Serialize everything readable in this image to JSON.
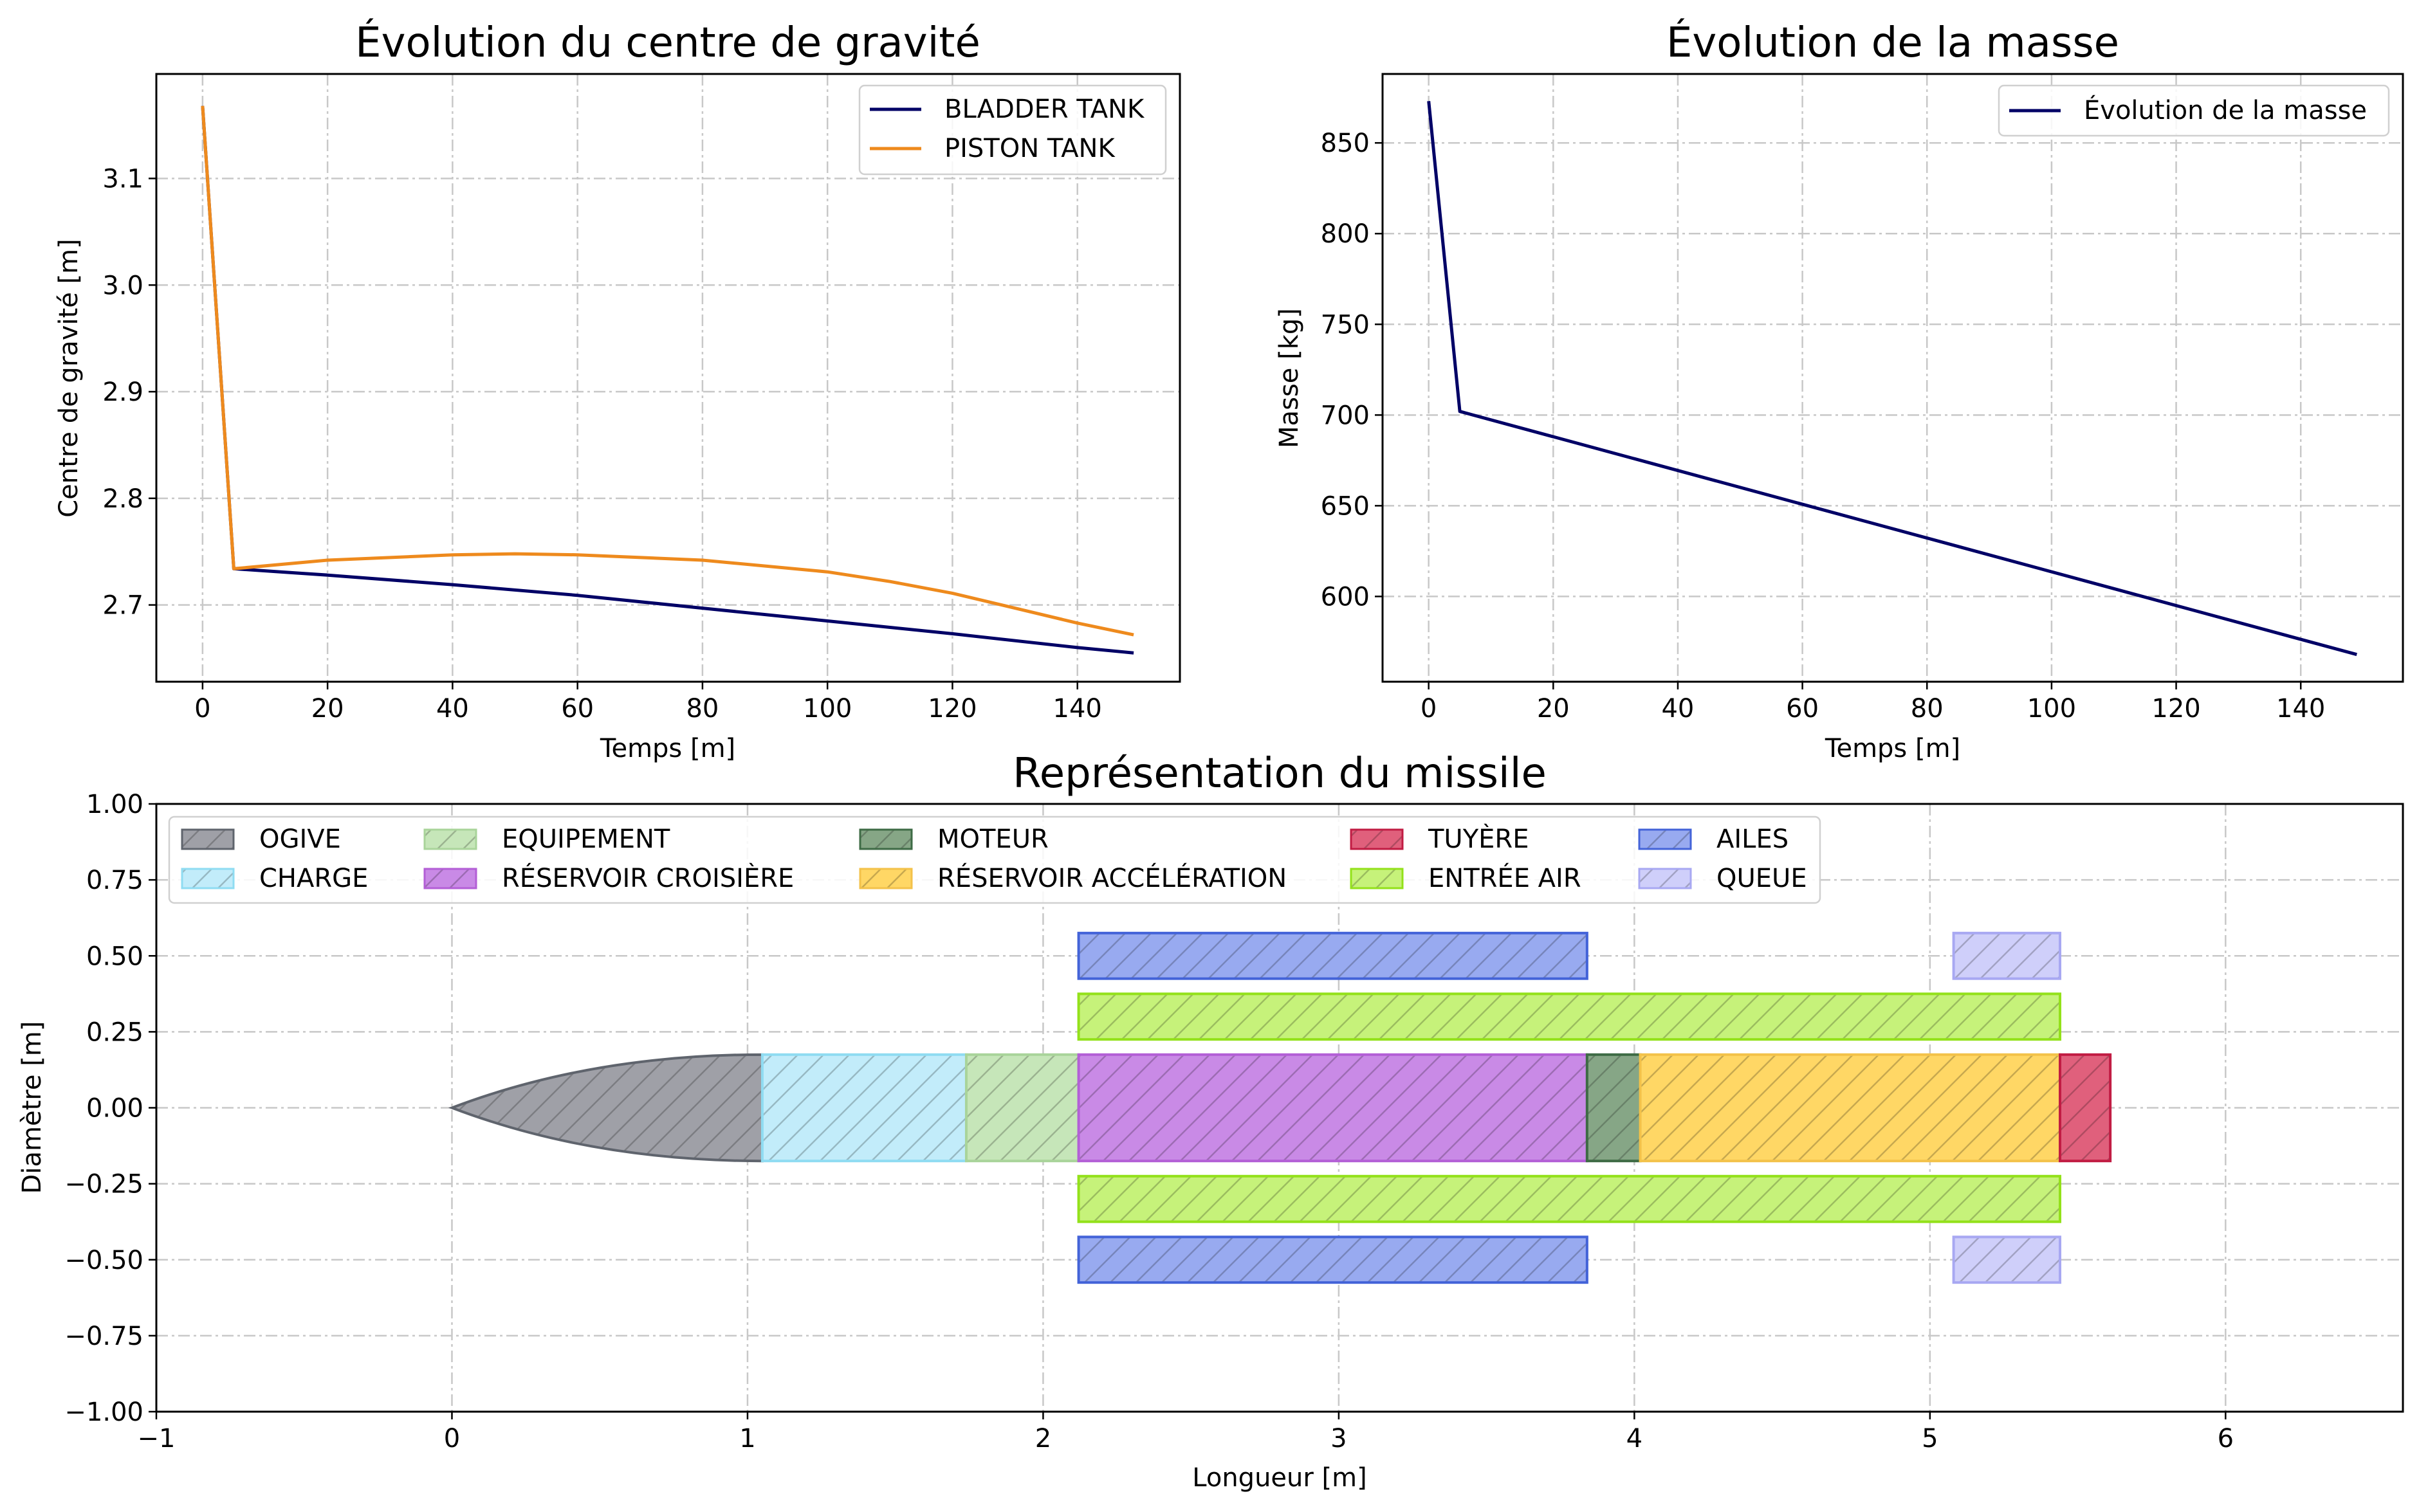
{
  "colors": {
    "navy": "#000066",
    "orange": "#ee8a1d",
    "grid": "#c8c8c8"
  },
  "chart_data": [
    {
      "type": "line",
      "title": "Évolution du centre de gravité",
      "xlabel": "Temps [m]",
      "ylabel": "Centre de gravité [m]",
      "xlim": [
        -7.4,
        156.4
      ],
      "ylim": [
        2.628,
        3.198
      ],
      "xticks": [
        0,
        20,
        40,
        60,
        80,
        100,
        120,
        140
      ],
      "yticks": [
        2.7,
        2.8,
        2.9,
        3.0,
        3.1
      ],
      "grid": true,
      "legend": "top-right",
      "series": [
        {
          "name": "BLADDER TANK",
          "color": "#000066",
          "x": [
            0,
            5,
            20,
            40,
            60,
            80,
            100,
            120,
            140,
            149
          ],
          "y": [
            3.168,
            2.734,
            2.728,
            2.719,
            2.709,
            2.697,
            2.685,
            2.673,
            2.66,
            2.655
          ]
        },
        {
          "name": "PISTON TANK",
          "color": "#ee8a1d",
          "x": [
            0,
            5,
            20,
            40,
            50,
            60,
            80,
            100,
            110,
            120,
            130,
            140,
            149
          ],
          "y": [
            3.168,
            2.734,
            2.742,
            2.747,
            2.748,
            2.747,
            2.742,
            2.731,
            2.722,
            2.711,
            2.697,
            2.683,
            2.672
          ]
        }
      ]
    },
    {
      "type": "line",
      "title": "Évolution de la masse",
      "xlabel": "Temps [m]",
      "ylabel": "Masse [kg]",
      "xlim": [
        -7.4,
        156.4
      ],
      "ylim": [
        553,
        888
      ],
      "xticks": [
        0,
        20,
        40,
        60,
        80,
        100,
        120,
        140
      ],
      "yticks": [
        600,
        650,
        700,
        750,
        800,
        850
      ],
      "grid": true,
      "legend": "top-right",
      "series": [
        {
          "name": "Évolution de la masse",
          "color": "#000066",
          "x": [
            0,
            5,
            149
          ],
          "y": [
            873,
            702,
            568
          ]
        }
      ]
    },
    {
      "type": "diagram",
      "title": "Représentation du missile",
      "xlabel": "Longueur [m]",
      "ylabel": "Diamètre [m]",
      "xlim": [
        -1,
        6.6
      ],
      "ylim": [
        -1,
        1
      ],
      "xticks": [
        -1,
        0,
        1,
        2,
        3,
        4,
        5,
        6
      ],
      "yticks": [
        1.0,
        0.75,
        0.5,
        0.25,
        0.0,
        -0.25,
        -0.5,
        -0.75,
        -1.0
      ],
      "xtick_labels": [
        "−1",
        "0",
        "1",
        "2",
        "3",
        "4",
        "5",
        "6"
      ],
      "ytick_labels": [
        "1.00",
        "0.75",
        "0.50",
        "0.25",
        "0.00",
        "−0.25",
        "−0.50",
        "−0.75",
        "−1.00"
      ],
      "grid": true,
      "legend": "top-left",
      "components": [
        {
          "name": "OGIVE",
          "fill": "#9fa0a7",
          "edge": "#5f646d",
          "shape": "ogive",
          "x0": 0,
          "x1": 1.05,
          "y0": -0.175,
          "y1": 0.175
        },
        {
          "name": "CHARGE",
          "fill": "#c2ecfa",
          "edge": "#8fdcf2",
          "shape": "rect",
          "x0": 1.05,
          "x1": 1.74,
          "y0": -0.175,
          "y1": 0.175
        },
        {
          "name": "EQUIPEMENT",
          "fill": "#c6e6b9",
          "edge": "#a9d49a",
          "shape": "rect",
          "x0": 1.74,
          "x1": 2.12,
          "y0": -0.175,
          "y1": 0.175
        },
        {
          "name": "RÉSERVOIR CROISIÈRE",
          "fill": "#c98ae6",
          "edge": "#b35fd6",
          "shape": "rect",
          "x0": 2.12,
          "x1": 3.84,
          "y0": -0.175,
          "y1": 0.175
        },
        {
          "name": "MOTEUR",
          "fill": "#86a686",
          "edge": "#3e6b45",
          "shape": "rect",
          "x0": 3.84,
          "x1": 4.02,
          "y0": -0.175,
          "y1": 0.175
        },
        {
          "name": "RÉSERVOIR ACCÉLÉRATION",
          "fill": "#ffd765",
          "edge": "#f3c24a",
          "shape": "rect",
          "x0": 4.02,
          "x1": 5.44,
          "y0": -0.175,
          "y1": 0.175
        },
        {
          "name": "TUYÈRE",
          "fill": "#e0607c",
          "edge": "#c11c43",
          "shape": "rect",
          "x0": 5.44,
          "x1": 5.61,
          "y0": -0.175,
          "y1": 0.175
        },
        {
          "name": "ENTRÉE AIR",
          "fill": "#c6f27a",
          "edge": "#93e11a",
          "shape": "rect",
          "x0": 2.12,
          "x1": 5.44,
          "y0": 0.225,
          "y1": 0.375
        },
        {
          "name": "ENTRÉE AIR",
          "fill": "#c6f27a",
          "edge": "#93e11a",
          "shape": "rect",
          "x0": 2.12,
          "x1": 5.44,
          "y0": -0.375,
          "y1": -0.225
        },
        {
          "name": "AILES",
          "fill": "#98aaf0",
          "edge": "#4363d8",
          "shape": "rect",
          "x0": 2.12,
          "x1": 3.84,
          "y0": 0.425,
          "y1": 0.575
        },
        {
          "name": "AILES",
          "fill": "#98aaf0",
          "edge": "#4363d8",
          "shape": "rect",
          "x0": 2.12,
          "x1": 3.84,
          "y0": -0.575,
          "y1": -0.425
        },
        {
          "name": "QUEUE",
          "fill": "#cfcffa",
          "edge": "#a8a8f2",
          "shape": "rect",
          "x0": 5.08,
          "x1": 5.44,
          "y0": 0.425,
          "y1": 0.575
        },
        {
          "name": "QUEUE",
          "fill": "#cfcffa",
          "edge": "#a8a8f2",
          "shape": "rect",
          "x0": 5.08,
          "x1": 5.44,
          "y0": -0.575,
          "y1": -0.425
        }
      ],
      "legend_entries": [
        {
          "name": "OGIVE",
          "fill": "#9fa0a7",
          "edge": "#5f646d"
        },
        {
          "name": "CHARGE",
          "fill": "#c2ecfa",
          "edge": "#8fdcf2"
        },
        {
          "name": "EQUIPEMENT",
          "fill": "#c6e6b9",
          "edge": "#a9d49a"
        },
        {
          "name": "RÉSERVOIR CROISIÈRE",
          "fill": "#c98ae6",
          "edge": "#b35fd6"
        },
        {
          "name": "MOTEUR",
          "fill": "#86a686",
          "edge": "#3e6b45"
        },
        {
          "name": "RÉSERVOIR ACCÉLÉRATION",
          "fill": "#ffd765",
          "edge": "#f3c24a"
        },
        {
          "name": "TUYÈRE",
          "fill": "#e0607c",
          "edge": "#c11c43"
        },
        {
          "name": "ENTRÉE AIR",
          "fill": "#c6f27a",
          "edge": "#93e11a"
        },
        {
          "name": "AILES",
          "fill": "#98aaf0",
          "edge": "#4363d8"
        },
        {
          "name": "QUEUE",
          "fill": "#cfcffa",
          "edge": "#a8a8f2"
        }
      ]
    }
  ]
}
